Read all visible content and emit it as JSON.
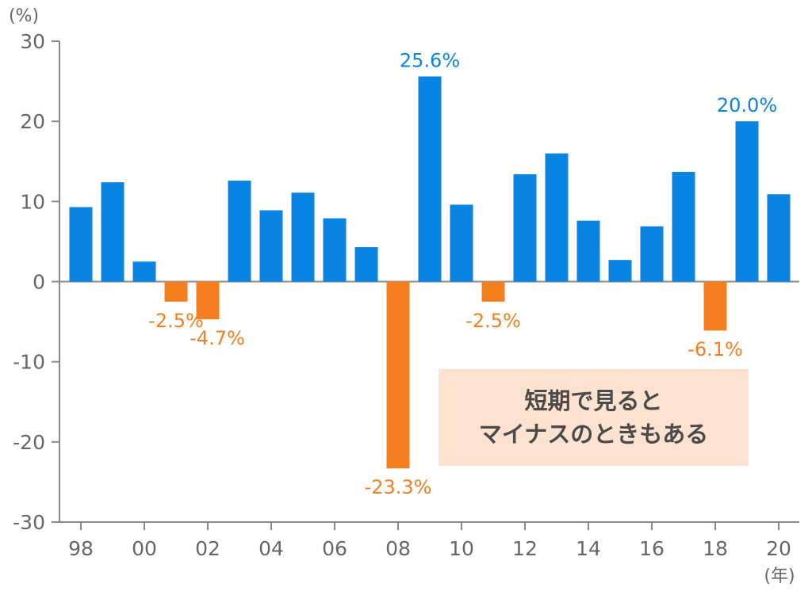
{
  "chart_data": {
    "type": "bar",
    "categories": [
      "98",
      "99",
      "00",
      "01",
      "02",
      "03",
      "04",
      "05",
      "06",
      "07",
      "08",
      "09",
      "10",
      "11",
      "12",
      "13",
      "14",
      "15",
      "16",
      "17",
      "18",
      "19",
      "20"
    ],
    "values": [
      9.3,
      12.4,
      2.5,
      -2.5,
      -4.7,
      12.6,
      8.9,
      11.1,
      7.9,
      4.3,
      -23.3,
      25.6,
      9.6,
      -2.5,
      13.4,
      16.0,
      7.6,
      2.7,
      6.9,
      13.7,
      -6.1,
      20.0,
      10.9
    ],
    "x_tick_labels": [
      "98",
      "00",
      "02",
      "04",
      "06",
      "08",
      "10",
      "12",
      "14",
      "16",
      "18",
      "20"
    ],
    "y_ticks": [
      30,
      20,
      10,
      0,
      -10,
      -20,
      -30
    ],
    "ylim": [
      -30,
      30
    ],
    "ylabel_unit": "(%)",
    "xlabel_unit": "(年)",
    "data_labels": [
      {
        "category": "01",
        "text": "-2.5%"
      },
      {
        "category": "02",
        "text": "-4.7%"
      },
      {
        "category": "08",
        "text": "-23.3%"
      },
      {
        "category": "09",
        "text": "25.6%"
      },
      {
        "category": "11",
        "text": "-2.5%"
      },
      {
        "category": "18",
        "text": "-6.1%"
      },
      {
        "category": "19",
        "text": "20.0%"
      }
    ],
    "colors": {
      "positive": "#0a84e3",
      "negative": "#f57f1f",
      "axis": "#888888",
      "tick_text": "#666666"
    },
    "grid": false,
    "annotation": {
      "lines": [
        "短期で見ると",
        "マイナスのときもある"
      ],
      "background": "#fde3cf"
    }
  }
}
